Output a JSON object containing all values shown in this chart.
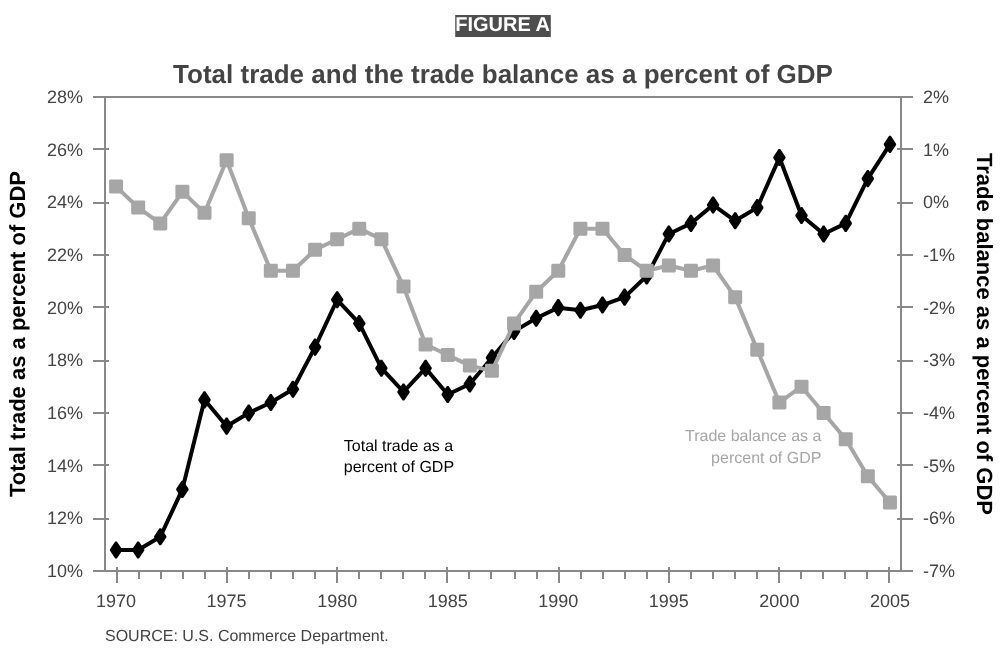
{
  "chart_data": {
    "type": "line",
    "title": "Total trade and the trade balance as a percent of GDP",
    "ylabel": "Total trade as a percent of GDP",
    "y2label": "Trade balance as a percent of GDP",
    "annotations": [
      "FIGURE A",
      "SOURCE: U.S. Commerce Department."
    ],
    "x": [
      1970,
      1971,
      1972,
      1973,
      1974,
      1975,
      1976,
      1977,
      1978,
      1979,
      1980,
      1981,
      1982,
      1983,
      1984,
      1985,
      1986,
      1987,
      1988,
      1989,
      1990,
      1991,
      1992,
      1993,
      1994,
      1995,
      1996,
      1997,
      1998,
      1999,
      2000,
      2001,
      2002,
      2003,
      2004,
      2005
    ],
    "series": [
      {
        "name": "Total trade as a percent of GDP",
        "color": "#000000",
        "marker": "diamond",
        "values": [
          10.8,
          10.8,
          11.3,
          13.1,
          16.5,
          15.5,
          16.0,
          16.4,
          16.9,
          18.5,
          20.3,
          19.4,
          17.7,
          16.8,
          17.7,
          16.7,
          17.1,
          18.1,
          19.1,
          19.6,
          20.0,
          19.9,
          20.1,
          20.4,
          21.2,
          22.8,
          23.2,
          23.9,
          23.3,
          23.8,
          25.7,
          23.5,
          22.8,
          23.2,
          24.9,
          26.2
        ]
      },
      {
        "name": "Trade balance as a percent of GDP",
        "color": "#a6a6a6",
        "marker": "square",
        "axis": "y2",
        "values": [
          0.3,
          -0.1,
          -0.4,
          0.2,
          -0.2,
          0.8,
          -0.3,
          -1.3,
          -1.3,
          -0.9,
          -0.7,
          -0.5,
          -0.7,
          -1.6,
          -2.7,
          -2.9,
          -3.1,
          -3.2,
          -2.3,
          -1.7,
          -1.3,
          -0.5,
          -0.5,
          -1.0,
          -1.3,
          -1.2,
          -1.3,
          -1.2,
          -1.8,
          -2.8,
          -3.8,
          -3.5,
          -4.0,
          -4.5,
          -5.2,
          -5.7
        ]
      }
    ],
    "xlim": [
      1969.5,
      2005.5
    ],
    "xticks": [
      1970,
      1975,
      1980,
      1985,
      1990,
      1995,
      2000,
      2005
    ],
    "ylim": [
      10,
      28
    ],
    "yticks": [
      {
        "value": 10,
        "label": "10%"
      },
      {
        "value": 12,
        "label": "12%"
      },
      {
        "value": 14,
        "label": "14%"
      },
      {
        "value": 16,
        "label": "16%"
      },
      {
        "value": 18,
        "label": "18%"
      },
      {
        "value": 20,
        "label": "20%"
      },
      {
        "value": 22,
        "label": "22%"
      },
      {
        "value": 24,
        "label": "24%"
      },
      {
        "value": 26,
        "label": "26%"
      },
      {
        "value": 28,
        "label": "28%"
      }
    ],
    "y2lim": [
      -7,
      2
    ],
    "y2ticks": [
      {
        "value": -7,
        "label": "-7%"
      },
      {
        "value": -6,
        "label": "-6%"
      },
      {
        "value": -5,
        "label": "-5%"
      },
      {
        "value": -4,
        "label": "-4%"
      },
      {
        "value": -3,
        "label": "-3%"
      },
      {
        "value": -2,
        "label": "-2%"
      },
      {
        "value": -1,
        "label": "-1%"
      },
      {
        "value": 0,
        "label": "0%"
      },
      {
        "value": 1,
        "label": "1%"
      },
      {
        "value": 2,
        "label": "2%"
      }
    ],
    "grid": false
  }
}
